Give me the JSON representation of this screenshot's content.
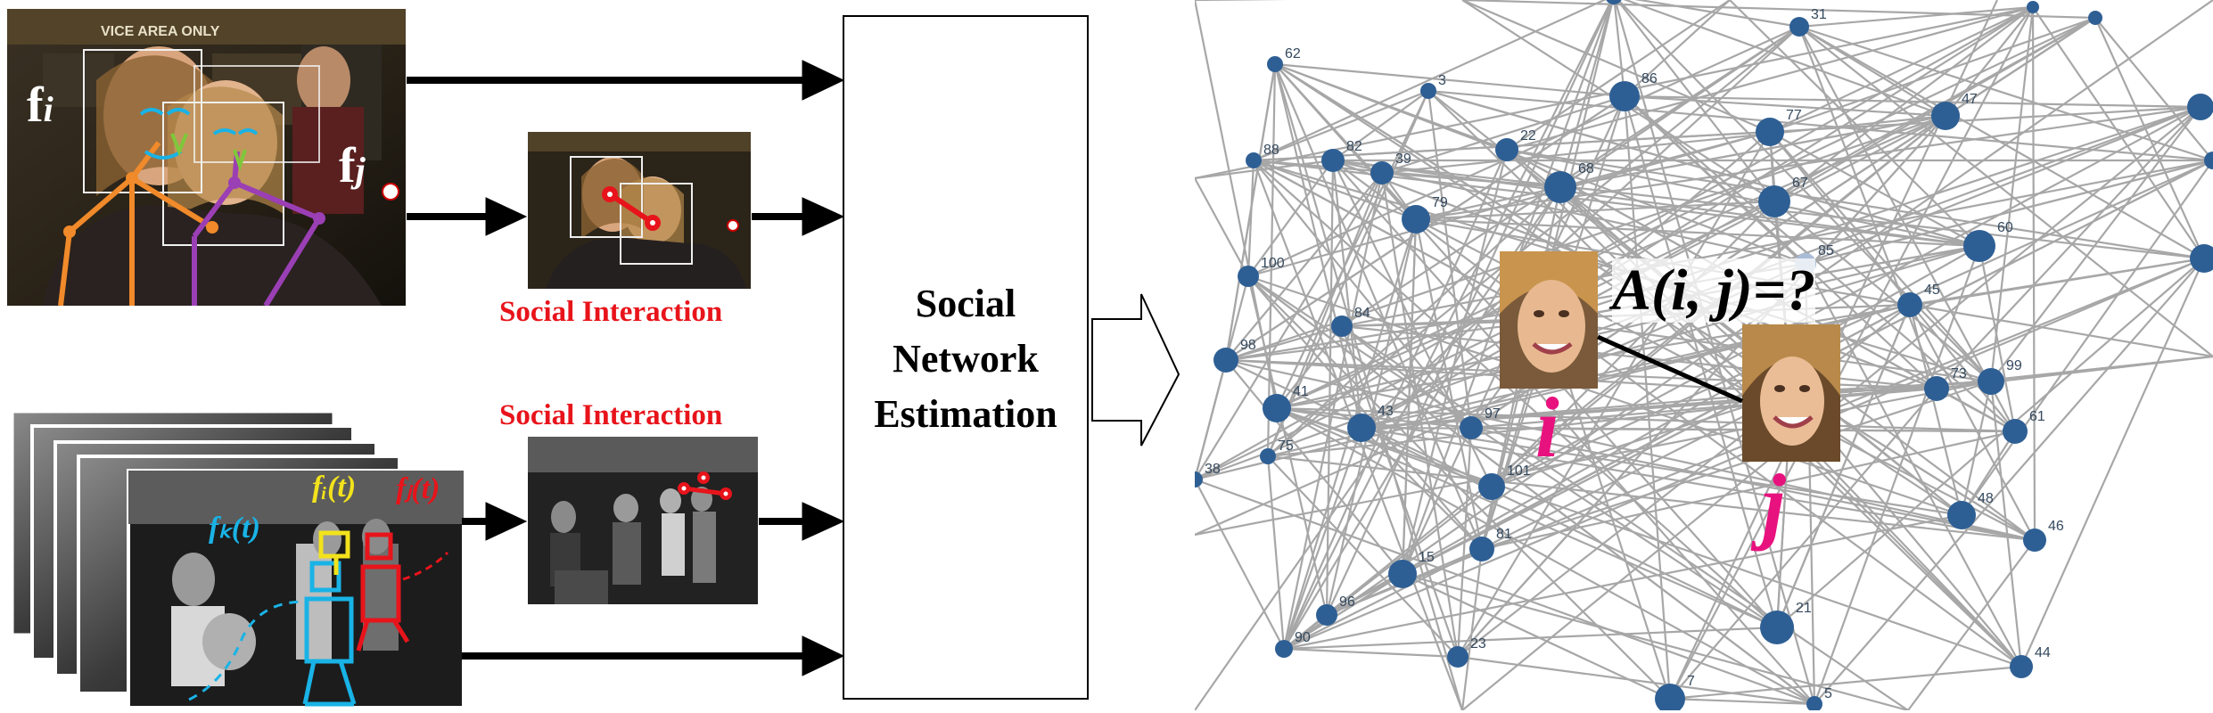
{
  "pair_labels": {
    "fi": "i",
    "fj": "j",
    "fi_prefix": "f",
    "fj_prefix": "f"
  },
  "social_interaction_top": "Social Interaction",
  "social_interaction_bottom": "Social Interaction",
  "track_labels": {
    "a": "fₖ(t)",
    "b": "fᵢ(t)",
    "c": "fⱼ(t)"
  },
  "estimation_box": {
    "line1": "Social",
    "line2": "Network",
    "line3": "Estimation"
  },
  "affinity_label": "A(i, j)=?",
  "node_i_label": "i",
  "node_j_label": "j",
  "node_ids": [
    "31",
    "62",
    "3",
    "86",
    "77",
    "47",
    "88",
    "82",
    "39",
    "22",
    "68",
    "67",
    "79",
    "85",
    "60",
    "100",
    "84",
    "45",
    "98",
    "73",
    "99",
    "41",
    "43",
    "97",
    "61",
    "75",
    "38",
    "101",
    "48",
    "46",
    "81",
    "15",
    "96",
    "90",
    "23",
    "21",
    "7",
    "5",
    "44"
  ],
  "colors": {
    "node": "#2e5f94",
    "edge": "#9e9e9e",
    "label_red": "#e8141b",
    "ij_magenta": "#e8127f",
    "skeleton_orange": "#f08a2a",
    "skeleton_purple": "#9b3fb5",
    "track_cyan": "#19b3e6",
    "track_yellow": "#f2e21c",
    "track_red": "#e8141b"
  }
}
